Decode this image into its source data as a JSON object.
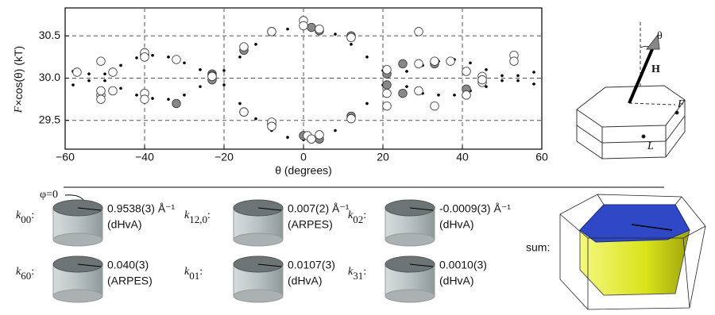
{
  "chart_data": {
    "type": "scatter",
    "ylabel": {
      "symbol": "F",
      "rest": "×cos(θ) (kT)"
    },
    "xlabel": "θ (degrees)",
    "xlim": [
      -60,
      60
    ],
    "xticks": [
      {
        "value": -60,
        "label": "−60"
      },
      {
        "value": -40,
        "label": "−40"
      },
      {
        "value": -20,
        "label": "−20"
      },
      0,
      20,
      40,
      60
    ],
    "ylim": [
      29.16,
      30.83
    ],
    "yticks": [
      29.5,
      {
        "value": 30,
        "label": "30.0"
      },
      30.5
    ],
    "grid": true,
    "series": [
      {
        "color": "#000000",
        "marker": "dot",
        "x": [
          -20,
          -16,
          -12,
          -8,
          -4,
          0,
          4,
          8,
          12,
          16,
          20,
          -20,
          -16,
          -12,
          -8,
          -4,
          0,
          4,
          8,
          12,
          16,
          20,
          -26,
          -30,
          -34,
          -38,
          -42,
          -46,
          -50,
          -54,
          -58,
          -26,
          -30,
          -34,
          -38,
          -42,
          -46,
          -50,
          -54,
          -58,
          26,
          30,
          34,
          38,
          42,
          46,
          50,
          54,
          58,
          26,
          30,
          34,
          38,
          42,
          46,
          50,
          54,
          58
        ],
        "values": [
          30.09,
          30.25,
          30.4,
          30.52,
          30.58,
          30.6,
          30.58,
          30.52,
          30.4,
          30.25,
          30.09,
          29.92,
          29.7,
          29.52,
          29.38,
          29.3,
          29.27,
          29.3,
          29.38,
          29.52,
          29.7,
          29.92,
          30.1,
          30.18,
          30.25,
          30.27,
          30.24,
          30.15,
          30.05,
          29.97,
          29.92,
          29.9,
          29.8,
          29.75,
          29.76,
          29.8,
          29.88,
          29.97,
          30.05,
          30.08,
          30.08,
          30.15,
          30.2,
          30.22,
          30.18,
          30.1,
          30.03,
          29.97,
          29.93,
          29.9,
          29.82,
          29.8,
          29.8,
          29.85,
          29.9,
          29.97,
          30.03,
          30.07
        ]
      },
      {
        "color": "#888888",
        "marker": "circle",
        "x": [
          -40,
          -32,
          -23,
          -23,
          -15,
          -15,
          -8,
          -8,
          2,
          4,
          0,
          4,
          12,
          12,
          21,
          21,
          25,
          25,
          33,
          41,
          -23
        ],
        "values": [
          30.27,
          29.7,
          30.05,
          29.98,
          30.33,
          29.6,
          29.45,
          30.55,
          30.6,
          30.56,
          29.32,
          29.28,
          29.55,
          30.5,
          30.05,
          29.92,
          30.17,
          29.82,
          30.17,
          29.87,
          30.03
        ]
      },
      {
        "color": "#ffffff",
        "marker": "circle",
        "x": [
          -51,
          -51,
          -51,
          -51,
          -48,
          -48,
          -40,
          -40,
          -40,
          -40,
          -32,
          -23,
          -15,
          -15,
          -8,
          -8,
          -8,
          0,
          0,
          1,
          2,
          4,
          4,
          12,
          12,
          21,
          21,
          21,
          29,
          29,
          29,
          33,
          33,
          37,
          41,
          41,
          45,
          45,
          45,
          53,
          53,
          -57
        ],
        "values": [
          30.2,
          29.8,
          29.75,
          29.85,
          30.07,
          29.85,
          30.3,
          30.25,
          29.82,
          29.75,
          30.22,
          30.02,
          30.37,
          29.6,
          30.55,
          29.48,
          29.43,
          30.68,
          30.62,
          29.32,
          29.28,
          30.58,
          29.33,
          30.48,
          29.52,
          29.67,
          29.82,
          30.1,
          30.55,
          30.17,
          29.85,
          30.2,
          29.67,
          30.2,
          30.08,
          29.8,
          30.02,
          29.95,
          29.98,
          30.27,
          30.2,
          30.07
        ]
      }
    ]
  },
  "diagram": {
    "angle": "θ",
    "field": "H",
    "fermi": "F",
    "point": "L"
  },
  "phi_label": "φ=0",
  "sum_label": "sum:",
  "tiles": [
    {
      "symbol": "k",
      "sub": "00",
      "punct": ":",
      "value": "0.9538(3) Å⁻¹",
      "method": "(dHvA)"
    },
    {
      "symbol": "k",
      "sub": "12,0",
      "punct": ":",
      "value": "0.007(2) Å⁻¹",
      "method": "(ARPES)"
    },
    {
      "symbol": "k",
      "sub": "02",
      "punct": ":",
      "value": "-0.0009(3) Å⁻¹",
      "method": "(dHvA)"
    },
    {
      "symbol": "k",
      "sub": "60",
      "punct": ":",
      "value": "0.040(3)",
      "method": "(ARPES)"
    },
    {
      "symbol": "k",
      "sub": "01",
      "punct": ":",
      "value": "0.0107(3)",
      "method": "(dHvA)"
    },
    {
      "symbol": "k",
      "sub": "31",
      "punct": ":",
      "value": "0.0010(3)",
      "method": "(dHvA)"
    }
  ]
}
